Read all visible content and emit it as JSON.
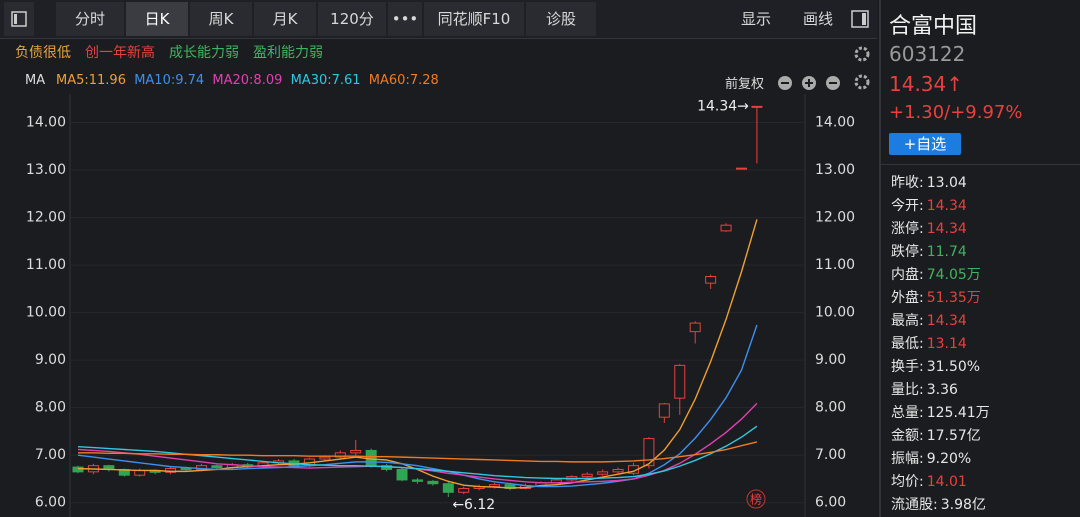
{
  "toolbar": {
    "tabs": [
      "分时",
      "日K",
      "周K",
      "月K",
      "120分",
      "•••",
      "同花顺F10",
      "诊股"
    ],
    "right": [
      "显示",
      "画线"
    ]
  },
  "tags": [
    {
      "text": "负债很低",
      "color": "#e8a33a"
    },
    {
      "text": "创一年新高",
      "color": "#e8413d"
    },
    {
      "text": "成长能力弱",
      "color": "#3fb45f"
    },
    {
      "text": "盈利能力弱",
      "color": "#3fb45f"
    }
  ],
  "ma_title": "MA",
  "adjust": "前复权",
  "chart_data": {
    "type": "candlestick",
    "ylim": [
      5.7,
      14.6
    ],
    "yticks": [
      {
        "value": 6,
        "label": "6.00"
      },
      {
        "value": 7,
        "label": "7.00"
      },
      {
        "value": 8,
        "label": "8.00"
      },
      {
        "value": 9,
        "label": "9.00"
      },
      {
        "value": 10,
        "label": "10.00"
      },
      {
        "value": 11,
        "label": "11.00"
      },
      {
        "value": 12,
        "label": "12.00"
      },
      {
        "value": 13,
        "label": "13.00"
      },
      {
        "value": 14,
        "label": "14.00"
      }
    ],
    "up_color": "#e8413d",
    "down_color": "#2ea653",
    "open": [
      6.75,
      6.65,
      6.78,
      6.7,
      6.58,
      6.68,
      6.64,
      6.72,
      6.7,
      6.78,
      6.74,
      6.8,
      6.76,
      6.84,
      6.88,
      6.78,
      6.92,
      6.96,
      7.05,
      7.1,
      6.78,
      6.7,
      6.48,
      6.45,
      6.4,
      6.22,
      6.3,
      6.34,
      6.38,
      6.3,
      6.36,
      6.42,
      6.48,
      6.55,
      6.6,
      6.65,
      6.62,
      6.78,
      7.8,
      8.2,
      9.6,
      10.62,
      11.72,
      13.04,
      14.34
    ],
    "high": [
      6.78,
      6.82,
      6.8,
      6.72,
      6.72,
      6.7,
      6.76,
      6.76,
      6.82,
      6.8,
      6.84,
      6.84,
      6.88,
      6.92,
      6.92,
      6.95,
      7.0,
      7.1,
      7.32,
      7.14,
      6.82,
      6.74,
      6.52,
      6.48,
      6.44,
      6.34,
      6.38,
      6.42,
      6.42,
      6.4,
      6.45,
      6.52,
      6.58,
      6.64,
      6.7,
      6.74,
      6.84,
      7.38,
      8.1,
      8.92,
      9.82,
      10.8,
      11.88,
      13.04,
      14.34
    ],
    "low": [
      6.62,
      6.6,
      6.66,
      6.55,
      6.55,
      6.6,
      6.6,
      6.66,
      6.66,
      6.7,
      6.7,
      6.72,
      6.72,
      6.8,
      6.75,
      6.75,
      6.88,
      6.92,
      7.0,
      6.74,
      6.66,
      6.45,
      6.4,
      6.36,
      6.12,
      6.18,
      6.26,
      6.3,
      6.26,
      6.28,
      6.33,
      6.4,
      6.45,
      6.52,
      6.57,
      6.62,
      6.58,
      6.72,
      7.68,
      7.85,
      9.35,
      10.5,
      11.7,
      13.04,
      13.14
    ],
    "close": [
      6.65,
      6.78,
      6.7,
      6.58,
      6.68,
      6.64,
      6.72,
      6.7,
      6.78,
      6.74,
      6.8,
      6.76,
      6.84,
      6.88,
      6.78,
      6.92,
      6.96,
      7.05,
      7.1,
      6.78,
      6.7,
      6.48,
      6.45,
      6.4,
      6.22,
      6.3,
      6.34,
      6.38,
      6.3,
      6.36,
      6.42,
      6.48,
      6.55,
      6.6,
      6.65,
      6.7,
      6.78,
      7.35,
      8.08,
      8.89,
      9.78,
      10.76,
      11.84,
      13.04,
      14.34
    ],
    "lines": [
      {
        "label": "MA5:11.96",
        "color": "#f0a030",
        "values": [
          6.72,
          6.71,
          6.7,
          6.69,
          6.68,
          6.68,
          6.66,
          6.66,
          6.68,
          6.7,
          6.74,
          6.76,
          6.78,
          6.8,
          6.81,
          6.84,
          6.88,
          6.92,
          6.96,
          6.92,
          6.9,
          6.82,
          6.7,
          6.56,
          6.45,
          6.37,
          6.34,
          6.33,
          6.31,
          6.32,
          6.36,
          6.38,
          6.42,
          6.48,
          6.54,
          6.6,
          6.66,
          6.82,
          7.11,
          7.54,
          8.18,
          8.97,
          9.86,
          10.86,
          11.96
        ]
      },
      {
        "label": "MA10:9.74",
        "color": "#3d8ff0",
        "values": [
          7.0,
          6.96,
          6.92,
          6.88,
          6.84,
          6.8,
          6.76,
          6.74,
          6.72,
          6.7,
          6.7,
          6.72,
          6.73,
          6.74,
          6.76,
          6.78,
          6.8,
          6.83,
          6.86,
          6.86,
          6.85,
          6.82,
          6.78,
          6.72,
          6.66,
          6.58,
          6.5,
          6.44,
          6.4,
          6.36,
          6.34,
          6.34,
          6.35,
          6.38,
          6.41,
          6.45,
          6.5,
          6.62,
          6.8,
          7.03,
          7.36,
          7.75,
          8.21,
          8.79,
          9.74
        ]
      },
      {
        "label": "MA20:8.09",
        "color": "#e040b0",
        "values": [
          7.12,
          7.1,
          7.08,
          7.05,
          7.02,
          6.98,
          6.94,
          6.9,
          6.86,
          6.82,
          6.8,
          6.78,
          6.76,
          6.75,
          6.74,
          6.73,
          6.74,
          6.75,
          6.76,
          6.77,
          6.76,
          6.74,
          6.71,
          6.67,
          6.62,
          6.58,
          6.54,
          6.5,
          6.47,
          6.44,
          6.42,
          6.42,
          6.43,
          6.44,
          6.45,
          6.47,
          6.5,
          6.58,
          6.68,
          6.83,
          7.02,
          7.24,
          7.48,
          7.76,
          8.09
        ]
      },
      {
        "label": "MA30:7.61",
        "color": "#30c8e0",
        "values": [
          7.18,
          7.16,
          7.14,
          7.12,
          7.1,
          7.08,
          7.05,
          7.02,
          6.99,
          6.96,
          6.93,
          6.9,
          6.87,
          6.84,
          6.82,
          6.8,
          6.79,
          6.78,
          6.78,
          6.77,
          6.76,
          6.74,
          6.72,
          6.69,
          6.66,
          6.63,
          6.6,
          6.57,
          6.55,
          6.53,
          6.52,
          6.51,
          6.51,
          6.51,
          6.52,
          6.53,
          6.55,
          6.6,
          6.67,
          6.77,
          6.89,
          7.03,
          7.19,
          7.38,
          7.61
        ]
      },
      {
        "label": "MA60:7.28",
        "color": "#f07a20",
        "values": [
          7.05,
          7.05,
          7.04,
          7.04,
          7.03,
          7.03,
          7.02,
          7.02,
          7.01,
          7.01,
          7.0,
          7.0,
          6.99,
          6.99,
          6.99,
          6.98,
          6.98,
          6.98,
          6.98,
          6.97,
          6.97,
          6.96,
          6.95,
          6.94,
          6.93,
          6.92,
          6.91,
          6.9,
          6.89,
          6.88,
          6.87,
          6.87,
          6.86,
          6.86,
          6.86,
          6.87,
          6.88,
          6.9,
          6.93,
          6.97,
          7.01,
          7.06,
          7.12,
          7.2,
          7.28
        ]
      }
    ],
    "annotations": [
      "14.34→",
      "←6.12"
    ],
    "badge": "榜"
  },
  "panel": {
    "name": "合富中国",
    "code": "603122",
    "price": "14.34↑",
    "change": "+1.30/+9.97%",
    "button": "+自选",
    "stats": [
      {
        "label": "昨收:",
        "value": "13.04",
        "color": "#e6e6e6"
      },
      {
        "label": "今开:",
        "value": "14.34",
        "color": "#e8413d"
      },
      {
        "label": "涨停:",
        "value": "14.34",
        "color": "#e8413d"
      },
      {
        "label": "跌停:",
        "value": "11.74",
        "color": "#3fb45f"
      },
      {
        "label": "内盘:",
        "value": "74.05万",
        "color": "#3fb45f"
      },
      {
        "label": "外盘:",
        "value": "51.35万",
        "color": "#e8413d"
      },
      {
        "label": "最高:",
        "value": "14.34",
        "color": "#e8413d"
      },
      {
        "label": "最低:",
        "value": "13.14",
        "color": "#e8413d"
      },
      {
        "label": "换手:",
        "value": "31.50%",
        "color": "#e6e6e6"
      },
      {
        "label": "量比:",
        "value": "3.36",
        "color": "#e6e6e6"
      },
      {
        "label": "总量:",
        "value": "125.41万",
        "color": "#e6e6e6"
      },
      {
        "label": "金额:",
        "value": "17.57亿",
        "color": "#e6e6e6"
      },
      {
        "label": "振幅:",
        "value": "9.20%",
        "color": "#e6e6e6"
      },
      {
        "label": "均价:",
        "value": "14.01",
        "color": "#e8413d"
      },
      {
        "label": "流通股:",
        "value": "3.98亿",
        "color": "#e6e6e6"
      }
    ]
  }
}
